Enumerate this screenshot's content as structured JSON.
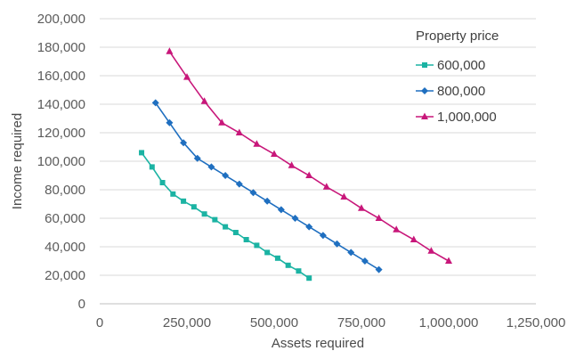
{
  "chart_data": {
    "type": "line",
    "title": "",
    "xlabel": "Assets required",
    "ylabel": "Income required",
    "xlim": [
      0,
      1250000
    ],
    "ylim": [
      0,
      200000
    ],
    "xticks": [
      0,
      250000,
      500000,
      750000,
      1000000,
      1250000
    ],
    "xtick_labels": [
      "0",
      "250,000",
      "500,000",
      "750,000",
      "1,000,000",
      "1,250,000"
    ],
    "yticks": [
      0,
      20000,
      40000,
      60000,
      80000,
      100000,
      120000,
      140000,
      160000,
      180000,
      200000
    ],
    "ytick_labels": [
      "0",
      "20,000",
      "40,000",
      "60,000",
      "80,000",
      "100,000",
      "120,000",
      "140,000",
      "160,000",
      "180,000",
      "200,000"
    ],
    "grid": "horizontal",
    "legend": {
      "title": "Property price",
      "placement": "top-right"
    },
    "series": [
      {
        "name": "600,000",
        "color": "#1bb3a3",
        "marker": "square",
        "x": [
          120000,
          150000,
          180000,
          210000,
          240000,
          270000,
          300000,
          330000,
          360000,
          390000,
          420000,
          450000,
          480000,
          510000,
          540000,
          570000,
          600000
        ],
        "y": [
          106000,
          96000,
          85000,
          77000,
          72000,
          68000,
          63000,
          59000,
          54000,
          50000,
          45000,
          41000,
          36000,
          32000,
          27000,
          23000,
          18000
        ]
      },
      {
        "name": "800,000",
        "color": "#1f6fc0",
        "marker": "diamond",
        "x": [
          160000,
          200000,
          240000,
          280000,
          320000,
          360000,
          400000,
          440000,
          480000,
          520000,
          560000,
          600000,
          640000,
          680000,
          720000,
          760000,
          800000
        ],
        "y": [
          141000,
          127000,
          113000,
          102000,
          96000,
          90000,
          84000,
          78000,
          72000,
          66000,
          60000,
          54000,
          48000,
          42000,
          36000,
          30000,
          24000
        ]
      },
      {
        "name": "1,000,000",
        "color": "#c8177a",
        "marker": "triangle",
        "x": [
          200000,
          250000,
          300000,
          350000,
          400000,
          450000,
          500000,
          550000,
          600000,
          650000,
          700000,
          750000,
          800000,
          850000,
          900000,
          950000,
          1000000
        ],
        "y": [
          177000,
          159000,
          142000,
          127000,
          120000,
          112000,
          105000,
          97000,
          90000,
          82000,
          75000,
          67000,
          60000,
          52000,
          45000,
          37000,
          30000
        ]
      }
    ]
  }
}
